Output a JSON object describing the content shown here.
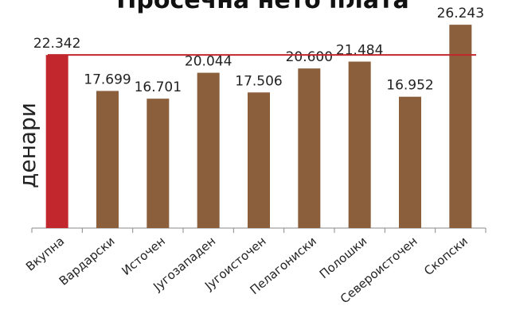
{
  "chart_data": {
    "type": "bar",
    "title": "Просечна нето плата",
    "ylabel": "денари",
    "xlabel": "",
    "categories": [
      "Вкупна",
      "Вардарски",
      "Источен",
      "Југозападен",
      "Југоисточен",
      "Пелагониски",
      "Полошки",
      "Североисточен",
      "Скопски"
    ],
    "values": [
      22.342,
      17.699,
      16.701,
      20.044,
      17.506,
      20.6,
      21.484,
      16.952,
      26.243
    ],
    "value_labels": [
      "22.342",
      "17.699",
      "16.701",
      "20.044",
      "17.506",
      "20.600",
      "21.484",
      "16.952",
      "26.243"
    ],
    "highlight_index": 0,
    "reference_line_value": 22.342,
    "ylim": [
      0,
      28
    ],
    "colors": {
      "highlight": "#c1272d",
      "bar": "#8b5e3c",
      "reference_line": "#c1272d",
      "axis": "#888888"
    }
  }
}
